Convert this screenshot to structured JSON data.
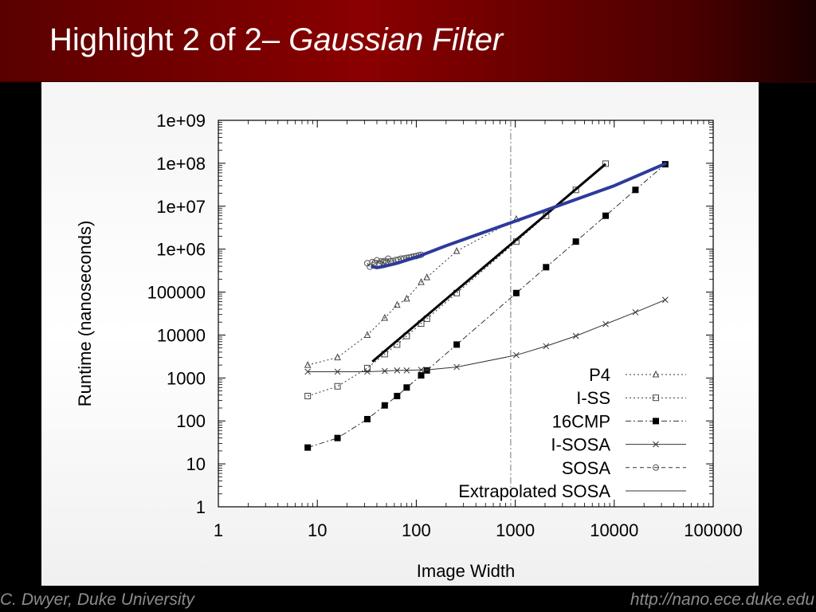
{
  "slide": {
    "title_prefix": "Highlight 2 of 2– ",
    "title_emphasis": "Gaussian Filter",
    "footer_left": "C. Dwyer, Duke University",
    "footer_right": "http://nano.ece.duke.edu"
  },
  "chart_data": {
    "type": "line",
    "title": "",
    "xlabel": "Image Width",
    "ylabel": "Runtime (nanoseconds)",
    "x_scale": "log",
    "y_scale": "log",
    "xlim": [
      1,
      100000
    ],
    "ylim": [
      1,
      1000000000
    ],
    "x_tick_labels": [
      "1",
      "10",
      "100",
      "1000",
      "10000",
      "100000"
    ],
    "y_tick_labels": [
      "1",
      "10",
      "100",
      "1000",
      "10000",
      "100000",
      "1e+06",
      "1e+07",
      "1e+08",
      "1e+09"
    ],
    "grid": false,
    "reference_line_x": 900,
    "legend_position": "bottom-right",
    "series": [
      {
        "name": "P4",
        "color": "#000000",
        "marker": "open-triangle",
        "line": "dotted",
        "points": [
          [
            8,
            2000
          ],
          [
            16,
            3000
          ],
          [
            32,
            10000
          ],
          [
            48,
            25000
          ],
          [
            64,
            50000
          ],
          [
            80,
            70000
          ],
          [
            112,
            170000
          ],
          [
            128,
            220000
          ],
          [
            256,
            900000
          ],
          [
            1024,
            5000000
          ]
        ]
      },
      {
        "name": "I-SS",
        "color": "#000000",
        "marker": "open-square",
        "line": "dotted",
        "points": [
          [
            8,
            380
          ],
          [
            16,
            640
          ],
          [
            32,
            1700
          ],
          [
            48,
            3600
          ],
          [
            64,
            6000
          ],
          [
            80,
            9500
          ],
          [
            112,
            18500
          ],
          [
            128,
            24000
          ],
          [
            256,
            95000
          ],
          [
            1024,
            1500000
          ],
          [
            2048,
            6000000
          ],
          [
            4096,
            24000000
          ],
          [
            8192,
            98000000
          ]
        ]
      },
      {
        "name": "16CMP",
        "color": "#000000",
        "marker": "filled-square",
        "line": "dash-dot",
        "points": [
          [
            8,
            24
          ],
          [
            16,
            40
          ],
          [
            32,
            110
          ],
          [
            48,
            230
          ],
          [
            64,
            380
          ],
          [
            80,
            600
          ],
          [
            112,
            1150
          ],
          [
            128,
            1500
          ],
          [
            256,
            6000
          ],
          [
            1024,
            95000
          ],
          [
            2048,
            380000
          ],
          [
            4096,
            1500000
          ],
          [
            8192,
            6000000
          ],
          [
            16384,
            24000000
          ],
          [
            32768,
            95000000
          ]
        ]
      },
      {
        "name": "I-SOSA",
        "color": "#000000",
        "marker": "cross",
        "line": "solid-thin",
        "points": [
          [
            8,
            1400
          ],
          [
            16,
            1400
          ],
          [
            32,
            1400
          ],
          [
            48,
            1450
          ],
          [
            64,
            1500
          ],
          [
            80,
            1500
          ],
          [
            112,
            1550
          ],
          [
            128,
            1550
          ],
          [
            256,
            1800
          ],
          [
            1024,
            3400
          ],
          [
            2048,
            5500
          ],
          [
            4096,
            9500
          ],
          [
            8192,
            18000
          ],
          [
            16384,
            34000
          ],
          [
            32768,
            66000
          ]
        ]
      },
      {
        "name": "SOSA",
        "color": "#000000",
        "marker": "open-circle",
        "line": "dashed",
        "points": [
          [
            32,
            470000
          ],
          [
            34,
            390000
          ],
          [
            36,
            500000
          ],
          [
            38,
            480000
          ],
          [
            40,
            550000
          ],
          [
            42,
            460000
          ],
          [
            44,
            520000
          ],
          [
            46,
            500000
          ],
          [
            48,
            530000
          ],
          [
            50,
            510000
          ],
          [
            52,
            600000
          ],
          [
            55,
            520000
          ],
          [
            58,
            530000
          ],
          [
            62,
            560000
          ],
          [
            66,
            570000
          ],
          [
            70,
            600000
          ],
          [
            75,
            610000
          ],
          [
            80,
            630000
          ],
          [
            85,
            640000
          ],
          [
            90,
            660000
          ],
          [
            95,
            680000
          ],
          [
            100,
            690000
          ],
          [
            106,
            720000
          ],
          [
            112,
            740000
          ]
        ]
      },
      {
        "name": "Extrapolated SOSA",
        "color": "#000000",
        "marker": "none",
        "line": "solid-thin",
        "points": [
          [
            36,
            2400
          ],
          [
            8192,
            96000000
          ]
        ]
      }
    ],
    "overlays": [
      {
        "color": "#2e3a9a",
        "points": [
          [
            36,
            390000
          ],
          [
            40,
            370000
          ],
          [
            48,
            400000
          ],
          [
            64,
            470000
          ],
          [
            100,
            650000
          ],
          [
            200,
            1200000
          ],
          [
            1000,
            4500000
          ],
          [
            10000,
            30000000
          ],
          [
            32768,
            98000000
          ]
        ]
      }
    ]
  }
}
